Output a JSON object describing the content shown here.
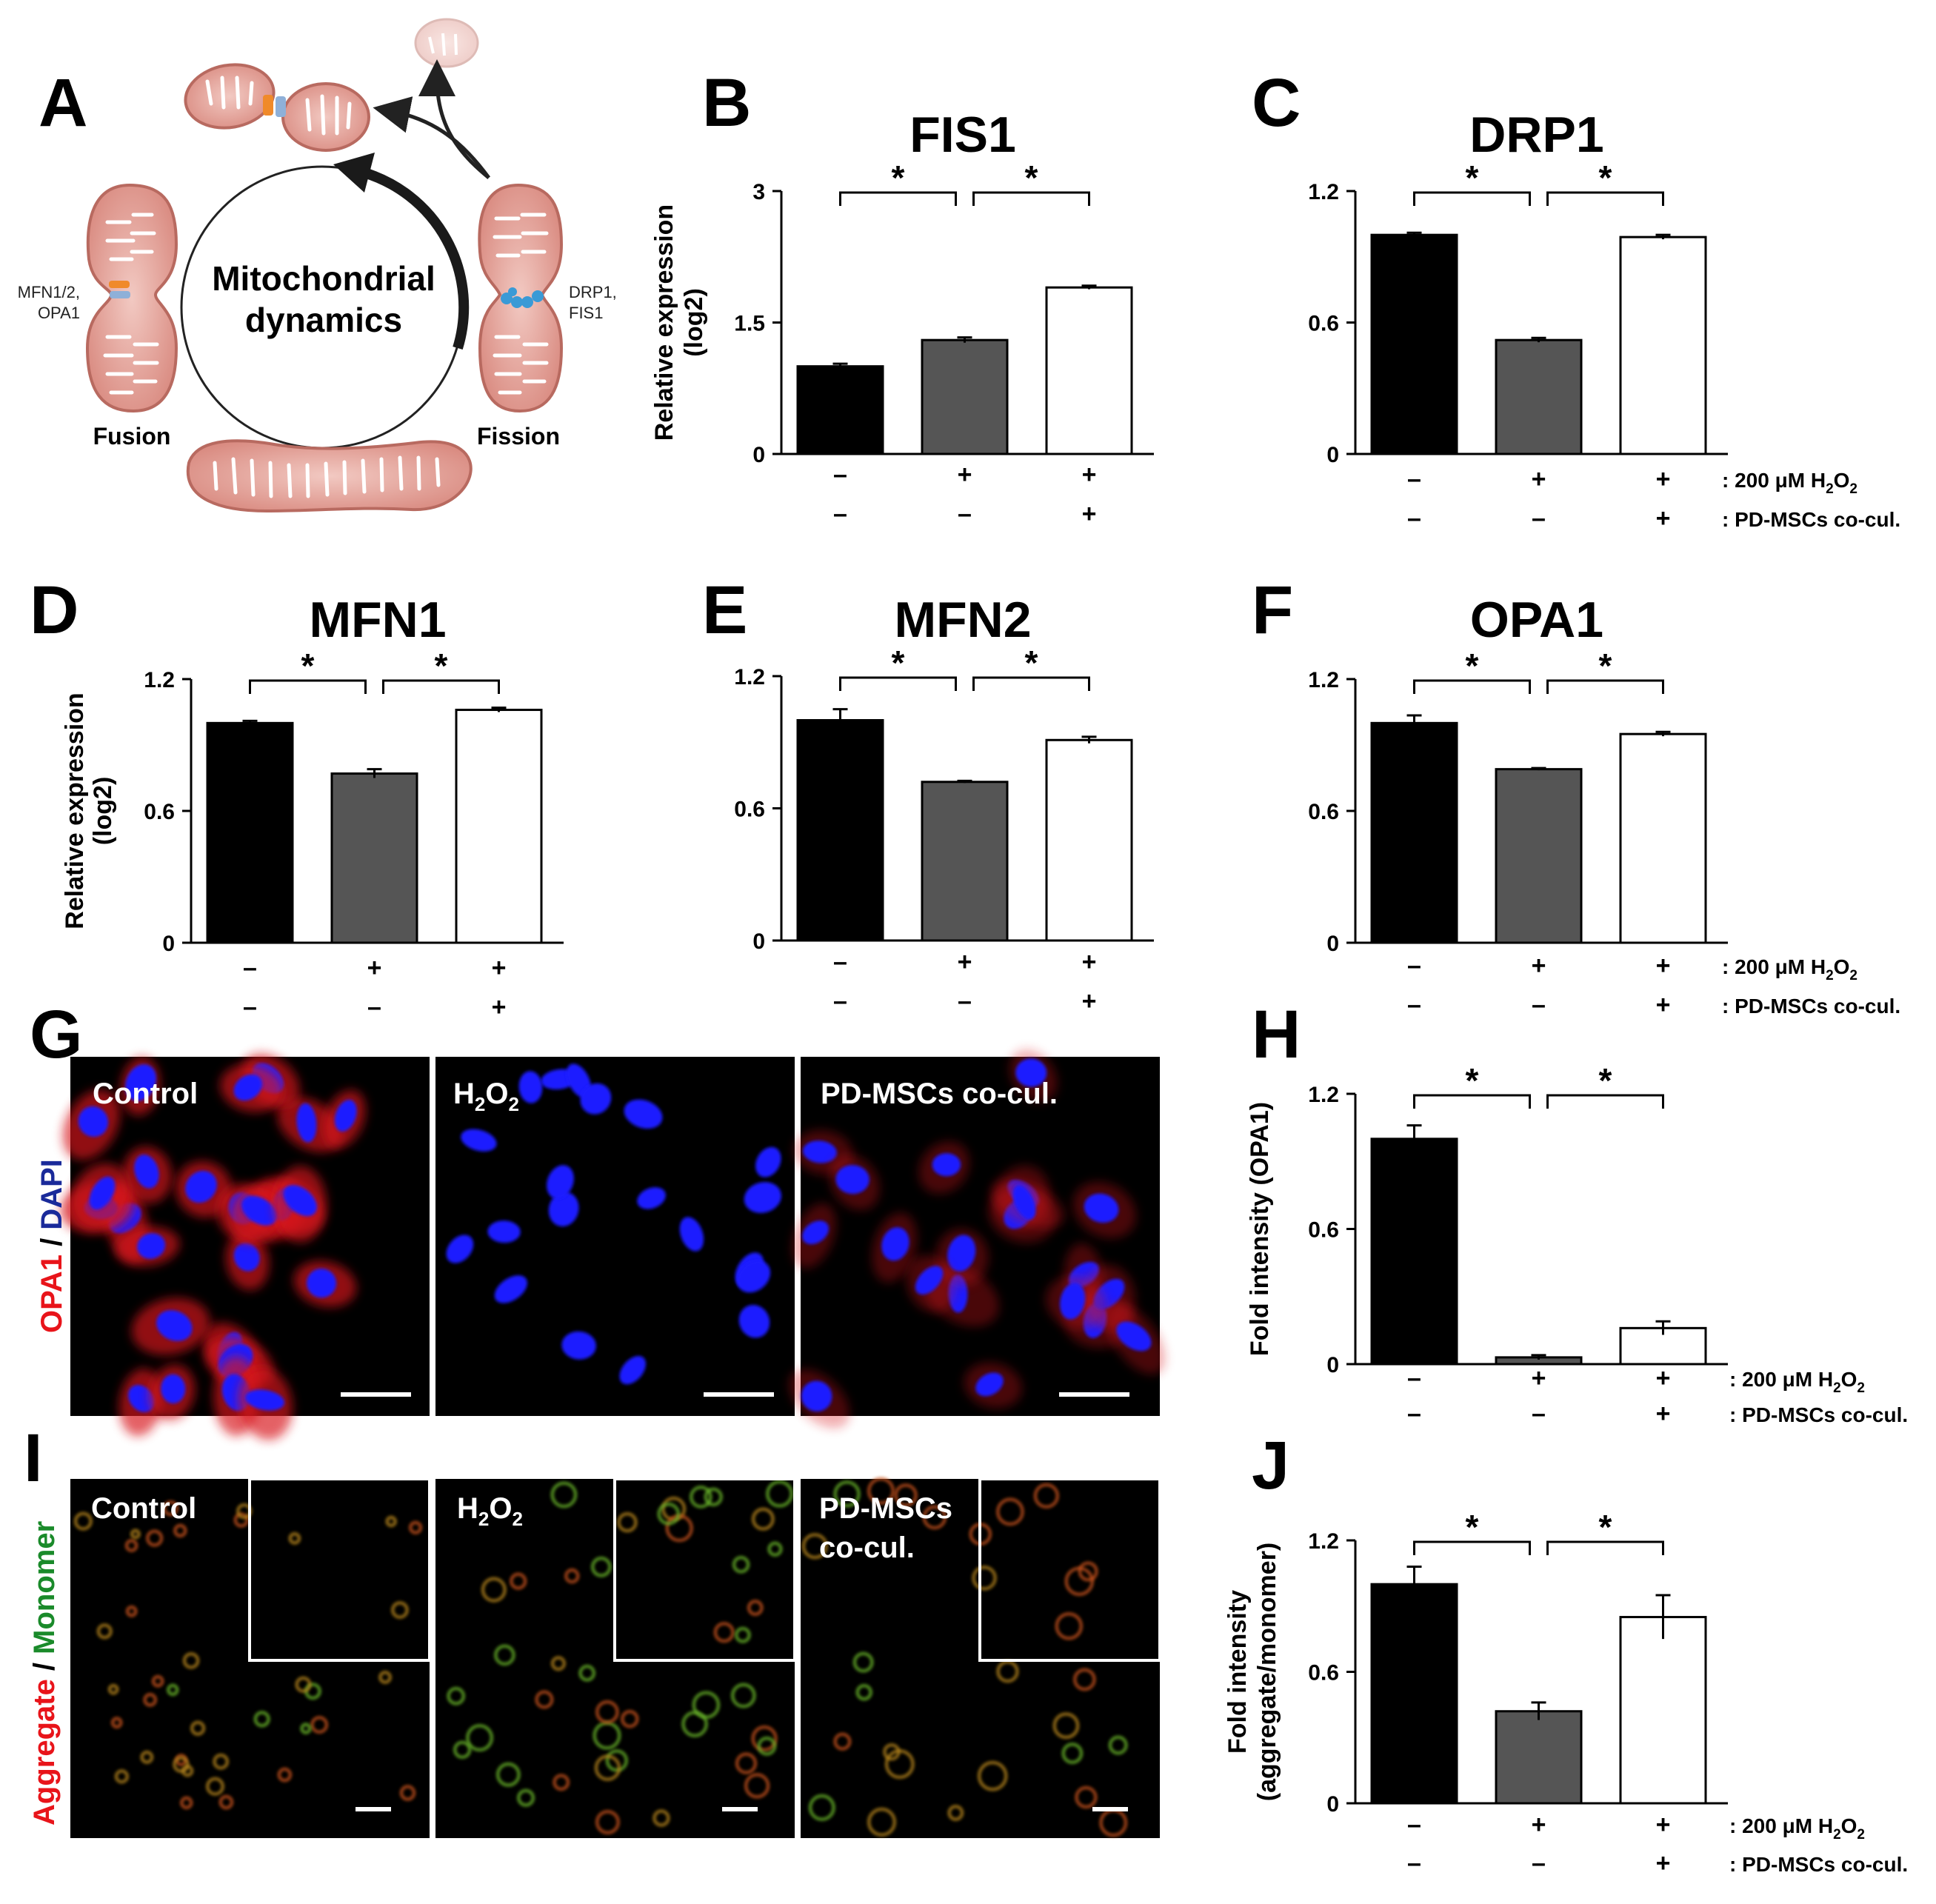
{
  "panel_letters": [
    "A",
    "B",
    "C",
    "D",
    "E",
    "F",
    "G",
    "H",
    "I",
    "J"
  ],
  "schematic": {
    "center_title_line1": "Mitochondrial",
    "center_title_line2": "dynamics",
    "fusion_label": "Fusion",
    "fission_label": "Fission",
    "fusion_proteins_line1": "MFN1/2,",
    "fusion_proteins_line2": "OPA1",
    "fission_proteins_line1": "DRP1,",
    "fission_proteins_line2": "FIS1"
  },
  "conditions": {
    "row1": [
      "–",
      "+",
      "+"
    ],
    "row2": [
      "–",
      "–",
      "+"
    ],
    "row1_label_prefix": ": 200 μM H",
    "row1_label_sub1": "2",
    "row1_label_mid": "O",
    "row1_label_sub2": "2",
    "row2_label": ": PD-MSCs co-cul."
  },
  "colors": {
    "bar1": "#000000",
    "bar2": "#555555",
    "bar3": "#ffffff",
    "outline": "#000000"
  },
  "chart_data": [
    {
      "type": "bar",
      "title": "FIS1",
      "ylabel": "Relative expression",
      "ylabel2": "(log2)",
      "ylim": [
        0,
        3
      ],
      "yticks": [
        "0",
        "1.5",
        "3"
      ],
      "yticks_v": [
        0,
        1.5,
        3
      ],
      "values": [
        1.0,
        1.3,
        1.9
      ],
      "errors": [
        0.03,
        0.03,
        0.02
      ],
      "significance": [
        "*",
        "*"
      ]
    },
    {
      "type": "bar",
      "title": "DRP1",
      "ylabel": "",
      "ylabel2": "",
      "ylim": [
        0,
        1.2
      ],
      "yticks": [
        "0",
        "0.6",
        "1.2"
      ],
      "yticks_v": [
        0,
        0.6,
        1.2
      ],
      "values": [
        1.0,
        0.52,
        0.99
      ],
      "errors": [
        0.01,
        0.01,
        0.01
      ],
      "significance": [
        "*",
        "*"
      ]
    },
    {
      "type": "bar",
      "title": "MFN1",
      "ylabel": "Relative expression",
      "ylabel2": "(log2)",
      "ylim": [
        0,
        1.2
      ],
      "yticks": [
        "0",
        "0.6",
        "1.2"
      ],
      "yticks_v": [
        0,
        0.6,
        1.2
      ],
      "values": [
        1.0,
        0.77,
        1.06
      ],
      "errors": [
        0.01,
        0.02,
        0.01
      ],
      "significance": [
        "*",
        "*"
      ]
    },
    {
      "type": "bar",
      "title": "MFN2",
      "ylabel": "",
      "ylabel2": "",
      "ylim": [
        0,
        1.2
      ],
      "yticks": [
        "0",
        "0.6",
        "1.2"
      ],
      "yticks_v": [
        0,
        0.6,
        1.2
      ],
      "values": [
        1.0,
        0.72,
        0.91
      ],
      "errors": [
        0.05,
        0.005,
        0.015
      ],
      "significance": [
        "*",
        "*"
      ]
    },
    {
      "type": "bar",
      "title": "OPA1",
      "ylabel": "",
      "ylabel2": "",
      "ylim": [
        0,
        1.2
      ],
      "yticks": [
        "0",
        "0.6",
        "1.2"
      ],
      "yticks_v": [
        0,
        0.6,
        1.2
      ],
      "values": [
        1.0,
        0.79,
        0.95
      ],
      "errors": [
        0.035,
        0.005,
        0.01
      ],
      "significance": [
        "*",
        "*"
      ]
    },
    {
      "type": "bar",
      "title": "",
      "ylabel": "Fold intensity (OPA1)",
      "ylabel2": "",
      "ylim": [
        0,
        1.2
      ],
      "yticks": [
        "0",
        "0.6",
        "1.2"
      ],
      "yticks_v": [
        0,
        0.6,
        1.2
      ],
      "values": [
        1.0,
        0.03,
        0.16
      ],
      "errors": [
        0.06,
        0.01,
        0.03
      ],
      "significance": [
        "*",
        "*"
      ]
    },
    {
      "type": "bar",
      "title": "",
      "ylabel": "Fold intensity",
      "ylabel2": "(aggregate/monomer)",
      "ylim": [
        0,
        1.2
      ],
      "yticks": [
        "0",
        "0.6",
        "1.2"
      ],
      "yticks_v": [
        0,
        0.6,
        1.2
      ],
      "values": [
        1.0,
        0.42,
        0.85
      ],
      "errors": [
        0.08,
        0.04,
        0.1
      ],
      "significance": [
        "*",
        "*"
      ]
    }
  ],
  "micrographs": {
    "g_labels": [
      "Control",
      "H2O2",
      "PD-MSCs co-cul."
    ],
    "g_label_h2o2_main": "H",
    "g_label_h2o2_sub": "2",
    "g_label_h2o2_o": "O",
    "g_ylabel_red": "OPA1",
    "g_ylabel_sep": " / ",
    "g_ylabel_blue": "DAPI",
    "i_label_control": "Control",
    "i_label_pd_line1": "PD-MSCs",
    "i_label_pd_line2": "co-cul.",
    "i_ylabel_red": "Aggregate",
    "i_ylabel_sep": " / ",
    "i_ylabel_green": "Monomer"
  }
}
